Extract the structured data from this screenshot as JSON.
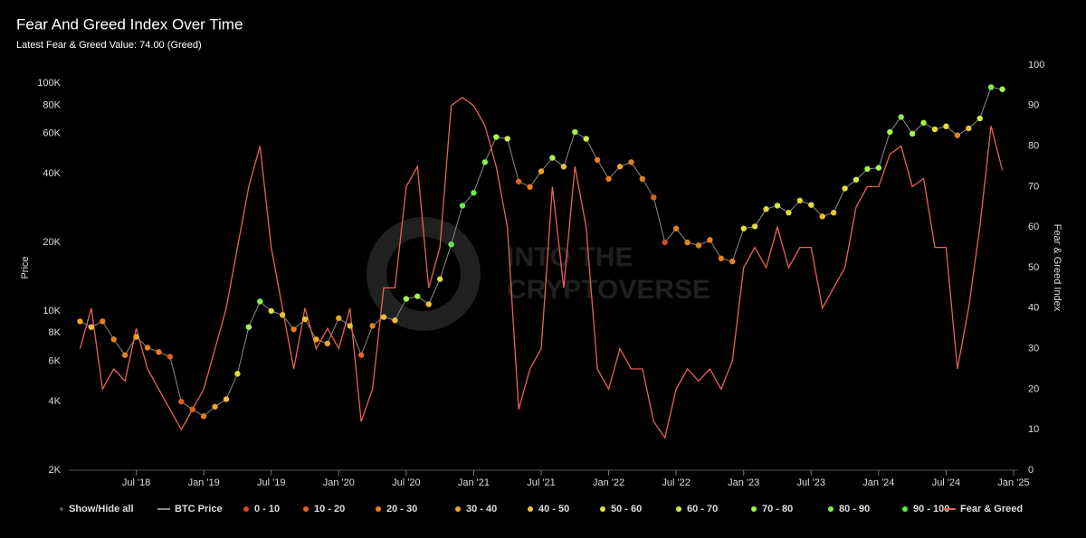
{
  "chart_data": {
    "type": "scatter_line",
    "title": "Fear And Greed Index Over Time",
    "subtitle": "Latest Fear & Greed Value: 74.00 (Greed)",
    "y_label": "Price",
    "y2_label": "Fear & Greed Index",
    "watermark": [
      "INTO THE",
      "CRYPTOVERSE"
    ],
    "show_all_label": "Show/Hide all",
    "log_scale": true,
    "grid": false,
    "legend": "bottom",
    "x": [
      "2018-02",
      "2018-03",
      "2018-04",
      "2018-05",
      "2018-06",
      "2018-07",
      "2018-08",
      "2018-09",
      "2018-10",
      "2018-11",
      "2018-12",
      "2019-01",
      "2019-02",
      "2019-03",
      "2019-04",
      "2019-05",
      "2019-06",
      "2019-07",
      "2019-08",
      "2019-09",
      "2019-10",
      "2019-11",
      "2019-12",
      "2020-01",
      "2020-02",
      "2020-03",
      "2020-04",
      "2020-05",
      "2020-06",
      "2020-07",
      "2020-08",
      "2020-09",
      "2020-10",
      "2020-11",
      "2020-12",
      "2021-01",
      "2021-02",
      "2021-03",
      "2021-04",
      "2021-05",
      "2021-06",
      "2021-07",
      "2021-08",
      "2021-09",
      "2021-10",
      "2021-11",
      "2021-12",
      "2022-01",
      "2022-02",
      "2022-03",
      "2022-04",
      "2022-05",
      "2022-06",
      "2022-07",
      "2022-08",
      "2022-09",
      "2022-10",
      "2022-11",
      "2022-12",
      "2023-01",
      "2023-02",
      "2023-03",
      "2023-04",
      "2023-05",
      "2023-06",
      "2023-07",
      "2023-08",
      "2023-09",
      "2023-10",
      "2023-11",
      "2023-12",
      "2024-01",
      "2024-02",
      "2024-03",
      "2024-04",
      "2024-05",
      "2024-06",
      "2024-07",
      "2024-08",
      "2024-09",
      "2024-10",
      "2024-11",
      "2024-12"
    ],
    "series": [
      {
        "name": "BTC Price",
        "color": "#8a8a8a",
        "values": [
          9000,
          8500,
          9000,
          7500,
          6400,
          7700,
          6900,
          6600,
          6300,
          4000,
          3700,
          3450,
          3800,
          4100,
          5300,
          8500,
          11000,
          10000,
          9600,
          8300,
          9200,
          7500,
          7200,
          9300,
          8600,
          6400,
          8600,
          9400,
          9100,
          11300,
          11600,
          10700,
          13800,
          19600,
          29000,
          33000,
          45000,
          58000,
          57000,
          37000,
          35000,
          41000,
          47000,
          43000,
          61000,
          57000,
          46000,
          38000,
          43000,
          45000,
          38000,
          31500,
          20000,
          23000,
          20000,
          19400,
          20500,
          17000,
          16500,
          23000,
          23500,
          28000,
          29000,
          27000,
          30500,
          29200,
          26000,
          27000,
          34500,
          37700,
          42000,
          42500,
          61000,
          71000,
          60000,
          67000,
          62700,
          64600,
          59000,
          63300,
          70000,
          96000,
          94000
        ]
      },
      {
        "name": "Fear & Greed",
        "color": "#e8605a",
        "axis": "y2",
        "values": [
          30,
          40,
          20,
          25,
          22,
          35,
          25,
          20,
          15,
          10,
          15,
          20,
          30,
          40,
          55,
          70,
          80,
          55,
          40,
          25,
          40,
          30,
          35,
          30,
          40,
          12,
          20,
          45,
          45,
          70,
          75,
          45,
          55,
          90,
          92,
          90,
          85,
          75,
          60,
          15,
          25,
          30,
          70,
          45,
          75,
          60,
          25,
          20,
          30,
          25,
          25,
          12,
          8,
          20,
          25,
          22,
          25,
          20,
          27,
          50,
          55,
          50,
          60,
          50,
          55,
          55,
          40,
          45,
          50,
          65,
          70,
          70,
          78,
          80,
          70,
          72,
          55,
          55,
          25,
          40,
          60,
          85,
          74
        ]
      }
    ],
    "color_buckets": [
      {
        "name": "0 - 10",
        "color": "#d2462a"
      },
      {
        "name": "10 - 20",
        "color": "#dc6222"
      },
      {
        "name": "20 - 30",
        "color": "#e4801e"
      },
      {
        "name": "30 - 40",
        "color": "#eda425"
      },
      {
        "name": "40 - 50",
        "color": "#e8c232"
      },
      {
        "name": "50 - 60",
        "color": "#e1dc3a"
      },
      {
        "name": "60 - 70",
        "color": "#c9ee48"
      },
      {
        "name": "70 - 80",
        "color": "#a6f04a"
      },
      {
        "name": "80 - 90",
        "color": "#85f04a"
      },
      {
        "name": "90 - 100",
        "color": "#62ec45"
      }
    ],
    "xlim": [
      "2018-01",
      "2025-01"
    ],
    "xticks": [
      {
        "value": "2018-07",
        "label": "Jul '18"
      },
      {
        "value": "2019-01",
        "label": "Jan '19"
      },
      {
        "value": "2019-07",
        "label": "Jul '19"
      },
      {
        "value": "2020-01",
        "label": "Jan '20"
      },
      {
        "value": "2020-07",
        "label": "Jul '20"
      },
      {
        "value": "2021-01",
        "label": "Jan '21"
      },
      {
        "value": "2021-07",
        "label": "Jul '21"
      },
      {
        "value": "2022-01",
        "label": "Jan '22"
      },
      {
        "value": "2022-07",
        "label": "Jul '22"
      },
      {
        "value": "2023-01",
        "label": "Jan '23"
      },
      {
        "value": "2023-07",
        "label": "Jul '23"
      },
      {
        "value": "2024-01",
        "label": "Jan '24"
      },
      {
        "value": "2024-07",
        "label": "Jul '24"
      },
      {
        "value": "2025-01",
        "label": "Jan '25"
      }
    ],
    "ylim": [
      2000,
      120000
    ],
    "yticks": [
      {
        "value": 2000,
        "label": "2K"
      },
      {
        "value": 4000,
        "label": "4K"
      },
      {
        "value": 6000,
        "label": "6K"
      },
      {
        "value": 8000,
        "label": "8K"
      },
      {
        "value": 10000,
        "label": "10K"
      },
      {
        "value": 20000,
        "label": "20K"
      },
      {
        "value": 40000,
        "label": "40K"
      },
      {
        "value": 60000,
        "label": "60K"
      },
      {
        "value": 80000,
        "label": "80K"
      },
      {
        "value": 100000,
        "label": "100K"
      }
    ],
    "y2lim": [
      0,
      100
    ],
    "y2ticks": [
      0,
      10,
      20,
      30,
      40,
      50,
      60,
      70,
      80,
      90,
      100
    ]
  }
}
